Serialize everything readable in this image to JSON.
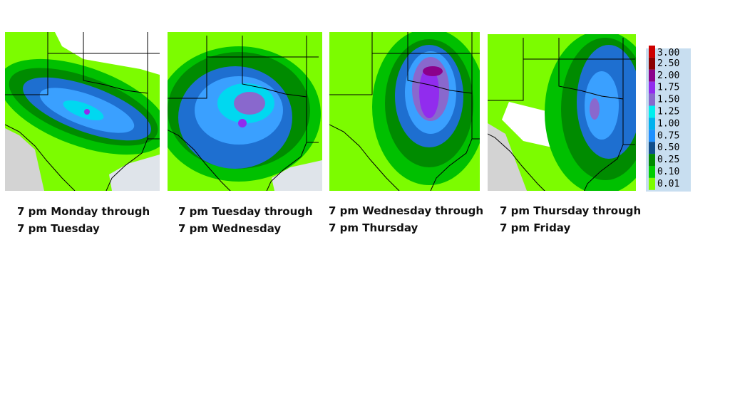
{
  "panels": [
    {
      "caption_line1": "7 pm Monday through",
      "caption_line2": "7 pm Tuesday"
    },
    {
      "caption_line1": "7 pm Tuesday through",
      "caption_line2": "7 pm Wednesday"
    },
    {
      "caption_line1": "7 pm Wednesday through",
      "caption_line2": "7 pm Thursday"
    },
    {
      "caption_line1": "7 pm Thursday through",
      "caption_line2": "7 pm Friday"
    }
  ],
  "legend": {
    "labels": [
      "3.00",
      "2.50",
      "2.00",
      "1.75",
      "1.50",
      "1.25",
      "1.00",
      "0.75",
      "0.50",
      "0.25",
      "0.10",
      "0.01"
    ]
  }
}
